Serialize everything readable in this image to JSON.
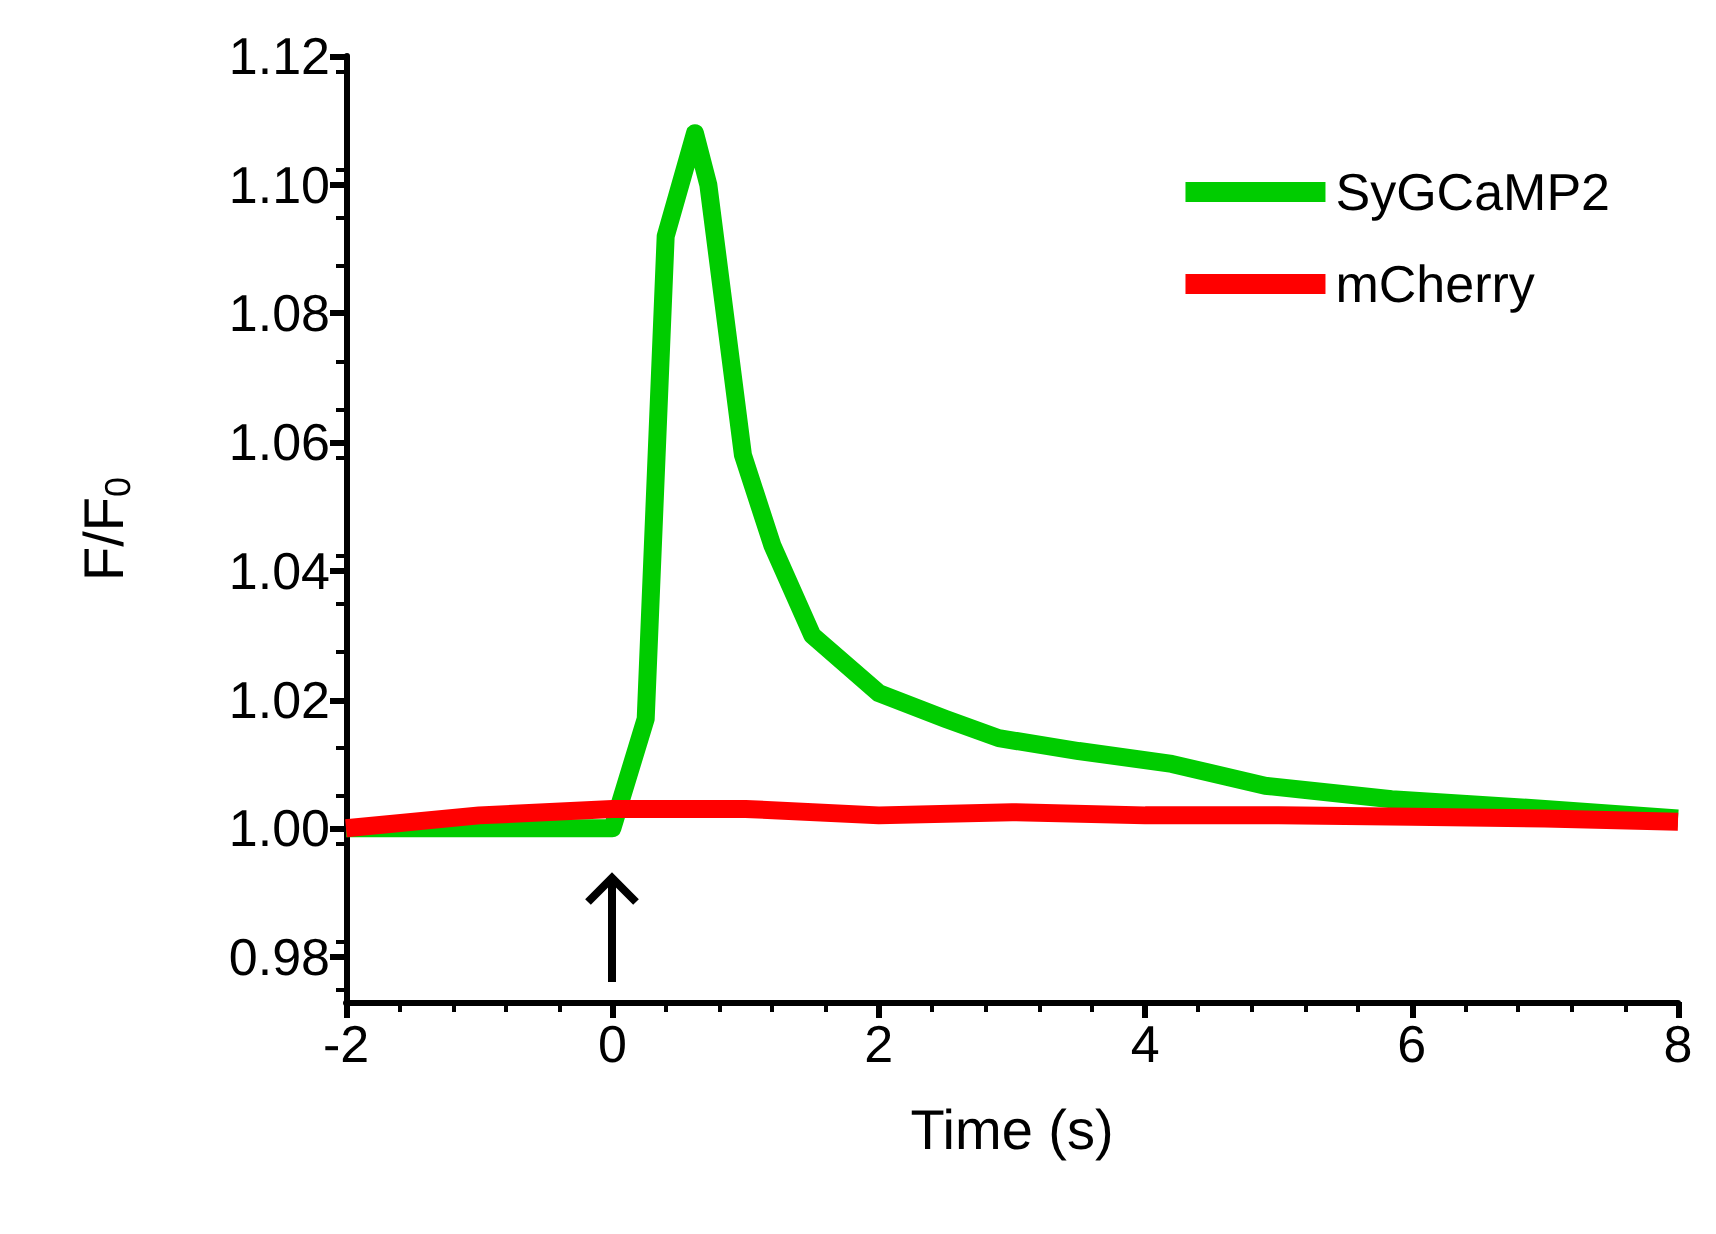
{
  "chart_data": {
    "type": "line",
    "xlabel": "Time (s)",
    "ylabel": "F/F$_{0}$",
    "xlim": [
      -2,
      8
    ],
    "xticks": [
      -2,
      0,
      2,
      4,
      6,
      8
    ],
    "ylim": [
      0.973,
      1.12
    ],
    "yticks": [
      0.98,
      {
        "value": 1.0,
        "label": "1.00"
      },
      1.02,
      1.04,
      1.06,
      1.08,
      {
        "value": 1.1,
        "label": "1.10"
      },
      1.12
    ],
    "legend": "top right",
    "grid": false,
    "marker": "none",
    "line_style": "solid",
    "series": [
      {
        "name": "SyGCaMP2",
        "color": "#00cc00",
        "x": [
          -2,
          -1,
          0,
          0.25,
          0.4,
          0.62,
          0.72,
          0.98,
          1.2,
          1.5,
          2.0,
          2.5,
          2.9,
          3.5,
          4.2,
          4.9,
          5.85,
          7,
          8
        ],
        "values": [
          1.0,
          1.0,
          1.0,
          1.017,
          1.092,
          1.108,
          1.1,
          1.058,
          1.044,
          1.03,
          1.021,
          1.017,
          1.014,
          1.012,
          1.01,
          1.0066,
          1.0045,
          1.003,
          1.0015
        ]
      },
      {
        "name": "mCherry",
        "color": "#ff0000",
        "x": [
          -2,
          -1,
          0,
          1,
          2,
          3,
          4,
          5,
          6,
          7,
          8
        ],
        "values": [
          1.0,
          1.002,
          1.003,
          1.003,
          1.002,
          1.0025,
          1.002,
          1.002,
          1.0018,
          1.0015,
          1.001
        ]
      }
    ]
  }
}
